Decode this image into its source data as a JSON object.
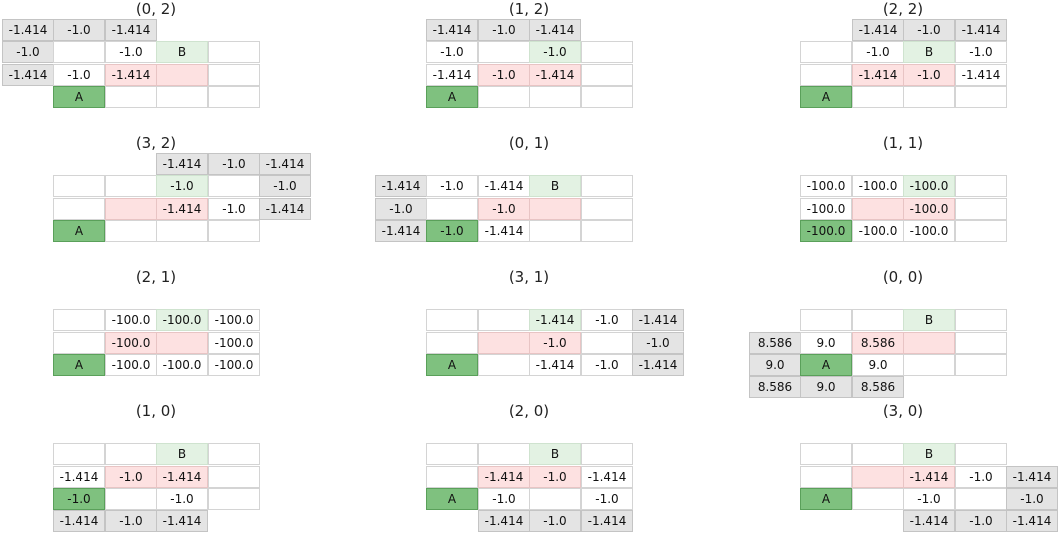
{
  "colors": {
    "empty": "#ffffff",
    "outside": "#e4e4e4",
    "wall": "#fde1e1",
    "goal": "#e3f2e3",
    "agent": "#7fc17f"
  },
  "panels": [
    {
      "title": "(0, 2)",
      "cells": [
        {
          "c": -1,
          "r": 0,
          "t": "out",
          "v": "-1.414"
        },
        {
          "c": 0,
          "r": 0,
          "t": "out",
          "v": "-1.0"
        },
        {
          "c": 1,
          "r": 0,
          "t": "out",
          "v": "-1.414"
        },
        {
          "c": -1,
          "r": 1,
          "t": "out",
          "v": "-1.0"
        },
        {
          "c": 0,
          "r": 1,
          "t": "empty",
          "v": ""
        },
        {
          "c": 1,
          "r": 1,
          "t": "empty",
          "v": "-1.0"
        },
        {
          "c": 2,
          "r": 1,
          "t": "goal",
          "v": "B"
        },
        {
          "c": 3,
          "r": 1,
          "t": "empty",
          "v": ""
        },
        {
          "c": -1,
          "r": 2,
          "t": "out",
          "v": "-1.414"
        },
        {
          "c": 0,
          "r": 2,
          "t": "empty",
          "v": "-1.0"
        },
        {
          "c": 1,
          "r": 2,
          "t": "wall",
          "v": "-1.414"
        },
        {
          "c": 2,
          "r": 2,
          "t": "wall",
          "v": ""
        },
        {
          "c": 3,
          "r": 2,
          "t": "empty",
          "v": ""
        },
        {
          "c": 0,
          "r": 3,
          "t": "agent",
          "v": "A"
        },
        {
          "c": 1,
          "r": 3,
          "t": "empty",
          "v": ""
        },
        {
          "c": 2,
          "r": 3,
          "t": "empty",
          "v": ""
        },
        {
          "c": 3,
          "r": 3,
          "t": "empty",
          "v": ""
        }
      ]
    },
    {
      "title": "(1, 2)",
      "cells": [
        {
          "c": 0,
          "r": 0,
          "t": "out",
          "v": "-1.414"
        },
        {
          "c": 1,
          "r": 0,
          "t": "out",
          "v": "-1.0"
        },
        {
          "c": 2,
          "r": 0,
          "t": "out",
          "v": "-1.414"
        },
        {
          "c": 0,
          "r": 1,
          "t": "empty",
          "v": "-1.0"
        },
        {
          "c": 1,
          "r": 1,
          "t": "empty",
          "v": ""
        },
        {
          "c": 2,
          "r": 1,
          "t": "goal",
          "v": "-1.0"
        },
        {
          "c": 3,
          "r": 1,
          "t": "empty",
          "v": ""
        },
        {
          "c": 0,
          "r": 2,
          "t": "empty",
          "v": "-1.414"
        },
        {
          "c": 1,
          "r": 2,
          "t": "wall",
          "v": "-1.0"
        },
        {
          "c": 2,
          "r": 2,
          "t": "wall",
          "v": "-1.414"
        },
        {
          "c": 3,
          "r": 2,
          "t": "empty",
          "v": ""
        },
        {
          "c": 0,
          "r": 3,
          "t": "agent",
          "v": "A"
        },
        {
          "c": 1,
          "r": 3,
          "t": "empty",
          "v": ""
        },
        {
          "c": 2,
          "r": 3,
          "t": "empty",
          "v": ""
        },
        {
          "c": 3,
          "r": 3,
          "t": "empty",
          "v": ""
        }
      ]
    },
    {
      "title": "(2, 2)",
      "cells": [
        {
          "c": 1,
          "r": 0,
          "t": "out",
          "v": "-1.414"
        },
        {
          "c": 2,
          "r": 0,
          "t": "out",
          "v": "-1.0"
        },
        {
          "c": 3,
          "r": 0,
          "t": "out",
          "v": "-1.414"
        },
        {
          "c": 0,
          "r": 1,
          "t": "empty",
          "v": ""
        },
        {
          "c": 1,
          "r": 1,
          "t": "empty",
          "v": "-1.0"
        },
        {
          "c": 2,
          "r": 1,
          "t": "goal",
          "v": "B"
        },
        {
          "c": 3,
          "r": 1,
          "t": "empty",
          "v": "-1.0"
        },
        {
          "c": 0,
          "r": 2,
          "t": "empty",
          "v": ""
        },
        {
          "c": 1,
          "r": 2,
          "t": "wall",
          "v": "-1.414"
        },
        {
          "c": 2,
          "r": 2,
          "t": "wall",
          "v": "-1.0"
        },
        {
          "c": 3,
          "r": 2,
          "t": "empty",
          "v": "-1.414"
        },
        {
          "c": 0,
          "r": 3,
          "t": "agent",
          "v": "A"
        },
        {
          "c": 1,
          "r": 3,
          "t": "empty",
          "v": ""
        },
        {
          "c": 2,
          "r": 3,
          "t": "empty",
          "v": ""
        },
        {
          "c": 3,
          "r": 3,
          "t": "empty",
          "v": ""
        }
      ]
    },
    {
      "title": "(3, 2)",
      "cells": [
        {
          "c": 2,
          "r": 0,
          "t": "out",
          "v": "-1.414"
        },
        {
          "c": 3,
          "r": 0,
          "t": "out",
          "v": "-1.0"
        },
        {
          "c": 4,
          "r": 0,
          "t": "out",
          "v": "-1.414"
        },
        {
          "c": 0,
          "r": 1,
          "t": "empty",
          "v": ""
        },
        {
          "c": 1,
          "r": 1,
          "t": "empty",
          "v": ""
        },
        {
          "c": 2,
          "r": 1,
          "t": "goal",
          "v": "-1.0"
        },
        {
          "c": 3,
          "r": 1,
          "t": "empty",
          "v": ""
        },
        {
          "c": 4,
          "r": 1,
          "t": "out",
          "v": "-1.0"
        },
        {
          "c": 0,
          "r": 2,
          "t": "empty",
          "v": ""
        },
        {
          "c": 1,
          "r": 2,
          "t": "wall",
          "v": ""
        },
        {
          "c": 2,
          "r": 2,
          "t": "wall",
          "v": "-1.414"
        },
        {
          "c": 3,
          "r": 2,
          "t": "empty",
          "v": "-1.0"
        },
        {
          "c": 4,
          "r": 2,
          "t": "out",
          "v": "-1.414"
        },
        {
          "c": 0,
          "r": 3,
          "t": "agent",
          "v": "A"
        },
        {
          "c": 1,
          "r": 3,
          "t": "empty",
          "v": ""
        },
        {
          "c": 2,
          "r": 3,
          "t": "empty",
          "v": ""
        },
        {
          "c": 3,
          "r": 3,
          "t": "empty",
          "v": ""
        }
      ]
    },
    {
      "title": "(0, 1)",
      "cells": [
        {
          "c": -1,
          "r": 1,
          "t": "out",
          "v": "-1.414"
        },
        {
          "c": 0,
          "r": 1,
          "t": "empty",
          "v": "-1.0"
        },
        {
          "c": 1,
          "r": 1,
          "t": "empty",
          "v": "-1.414"
        },
        {
          "c": 2,
          "r": 1,
          "t": "goal",
          "v": "B"
        },
        {
          "c": 3,
          "r": 1,
          "t": "empty",
          "v": ""
        },
        {
          "c": -1,
          "r": 2,
          "t": "out",
          "v": "-1.0"
        },
        {
          "c": 0,
          "r": 2,
          "t": "empty",
          "v": ""
        },
        {
          "c": 1,
          "r": 2,
          "t": "wall",
          "v": "-1.0"
        },
        {
          "c": 2,
          "r": 2,
          "t": "wall",
          "v": ""
        },
        {
          "c": 3,
          "r": 2,
          "t": "empty",
          "v": ""
        },
        {
          "c": -1,
          "r": 3,
          "t": "out",
          "v": "-1.414"
        },
        {
          "c": 0,
          "r": 3,
          "t": "agent",
          "v": "-1.0"
        },
        {
          "c": 1,
          "r": 3,
          "t": "empty",
          "v": "-1.414"
        },
        {
          "c": 2,
          "r": 3,
          "t": "empty",
          "v": ""
        },
        {
          "c": 3,
          "r": 3,
          "t": "empty",
          "v": ""
        }
      ]
    },
    {
      "title": "(1, 1)",
      "cells": [
        {
          "c": 0,
          "r": 1,
          "t": "empty",
          "v": "-100.0"
        },
        {
          "c": 1,
          "r": 1,
          "t": "empty",
          "v": "-100.0"
        },
        {
          "c": 2,
          "r": 1,
          "t": "goal",
          "v": "-100.0"
        },
        {
          "c": 3,
          "r": 1,
          "t": "empty",
          "v": ""
        },
        {
          "c": 0,
          "r": 2,
          "t": "empty",
          "v": "-100.0"
        },
        {
          "c": 1,
          "r": 2,
          "t": "wall",
          "v": ""
        },
        {
          "c": 2,
          "r": 2,
          "t": "wall",
          "v": "-100.0"
        },
        {
          "c": 3,
          "r": 2,
          "t": "empty",
          "v": ""
        },
        {
          "c": 0,
          "r": 3,
          "t": "agent",
          "v": "-100.0"
        },
        {
          "c": 1,
          "r": 3,
          "t": "empty",
          "v": "-100.0"
        },
        {
          "c": 2,
          "r": 3,
          "t": "empty",
          "v": "-100.0"
        },
        {
          "c": 3,
          "r": 3,
          "t": "empty",
          "v": ""
        }
      ]
    },
    {
      "title": "(2, 1)",
      "cells": [
        {
          "c": 0,
          "r": 1,
          "t": "empty",
          "v": ""
        },
        {
          "c": 1,
          "r": 1,
          "t": "empty",
          "v": "-100.0"
        },
        {
          "c": 2,
          "r": 1,
          "t": "goal",
          "v": "-100.0"
        },
        {
          "c": 3,
          "r": 1,
          "t": "empty",
          "v": "-100.0"
        },
        {
          "c": 0,
          "r": 2,
          "t": "empty",
          "v": ""
        },
        {
          "c": 1,
          "r": 2,
          "t": "wall",
          "v": "-100.0"
        },
        {
          "c": 2,
          "r": 2,
          "t": "wall",
          "v": ""
        },
        {
          "c": 3,
          "r": 2,
          "t": "empty",
          "v": "-100.0"
        },
        {
          "c": 0,
          "r": 3,
          "t": "agent",
          "v": "A"
        },
        {
          "c": 1,
          "r": 3,
          "t": "empty",
          "v": "-100.0"
        },
        {
          "c": 2,
          "r": 3,
          "t": "empty",
          "v": "-100.0"
        },
        {
          "c": 3,
          "r": 3,
          "t": "empty",
          "v": "-100.0"
        }
      ]
    },
    {
      "title": "(3, 1)",
      "cells": [
        {
          "c": 0,
          "r": 1,
          "t": "empty",
          "v": ""
        },
        {
          "c": 1,
          "r": 1,
          "t": "empty",
          "v": ""
        },
        {
          "c": 2,
          "r": 1,
          "t": "goal",
          "v": "-1.414"
        },
        {
          "c": 3,
          "r": 1,
          "t": "empty",
          "v": "-1.0"
        },
        {
          "c": 4,
          "r": 1,
          "t": "out",
          "v": "-1.414"
        },
        {
          "c": 0,
          "r": 2,
          "t": "empty",
          "v": ""
        },
        {
          "c": 1,
          "r": 2,
          "t": "wall",
          "v": ""
        },
        {
          "c": 2,
          "r": 2,
          "t": "wall",
          "v": "-1.0"
        },
        {
          "c": 3,
          "r": 2,
          "t": "empty",
          "v": ""
        },
        {
          "c": 4,
          "r": 2,
          "t": "out",
          "v": "-1.0"
        },
        {
          "c": 0,
          "r": 3,
          "t": "agent",
          "v": "A"
        },
        {
          "c": 1,
          "r": 3,
          "t": "empty",
          "v": ""
        },
        {
          "c": 2,
          "r": 3,
          "t": "empty",
          "v": "-1.414"
        },
        {
          "c": 3,
          "r": 3,
          "t": "empty",
          "v": "-1.0"
        },
        {
          "c": 4,
          "r": 3,
          "t": "out",
          "v": "-1.414"
        }
      ]
    },
    {
      "title": "(0, 0)",
      "cells": [
        {
          "c": 0,
          "r": 1,
          "t": "empty",
          "v": ""
        },
        {
          "c": 1,
          "r": 1,
          "t": "empty",
          "v": ""
        },
        {
          "c": 2,
          "r": 1,
          "t": "goal",
          "v": "B"
        },
        {
          "c": 3,
          "r": 1,
          "t": "empty",
          "v": ""
        },
        {
          "c": -1,
          "r": 2,
          "t": "out",
          "v": "8.586"
        },
        {
          "c": 0,
          "r": 2,
          "t": "empty",
          "v": "9.0"
        },
        {
          "c": 1,
          "r": 2,
          "t": "wall",
          "v": "8.586"
        },
        {
          "c": 2,
          "r": 2,
          "t": "wall",
          "v": ""
        },
        {
          "c": 3,
          "r": 2,
          "t": "empty",
          "v": ""
        },
        {
          "c": -1,
          "r": 3,
          "t": "out",
          "v": "9.0"
        },
        {
          "c": 0,
          "r": 3,
          "t": "agent",
          "v": "A"
        },
        {
          "c": 1,
          "r": 3,
          "t": "empty",
          "v": "9.0"
        },
        {
          "c": 2,
          "r": 3,
          "t": "empty",
          "v": ""
        },
        {
          "c": 3,
          "r": 3,
          "t": "empty",
          "v": ""
        },
        {
          "c": -1,
          "r": 4,
          "t": "out",
          "v": "8.586"
        },
        {
          "c": 0,
          "r": 4,
          "t": "out",
          "v": "9.0"
        },
        {
          "c": 1,
          "r": 4,
          "t": "out",
          "v": "8.586"
        }
      ]
    },
    {
      "title": "(1, 0)",
      "cells": [
        {
          "c": 0,
          "r": 1,
          "t": "empty",
          "v": ""
        },
        {
          "c": 1,
          "r": 1,
          "t": "empty",
          "v": ""
        },
        {
          "c": 2,
          "r": 1,
          "t": "goal",
          "v": "B"
        },
        {
          "c": 3,
          "r": 1,
          "t": "empty",
          "v": ""
        },
        {
          "c": 0,
          "r": 2,
          "t": "empty",
          "v": "-1.414"
        },
        {
          "c": 1,
          "r": 2,
          "t": "wall",
          "v": "-1.0"
        },
        {
          "c": 2,
          "r": 2,
          "t": "wall",
          "v": "-1.414"
        },
        {
          "c": 3,
          "r": 2,
          "t": "empty",
          "v": ""
        },
        {
          "c": 0,
          "r": 3,
          "t": "agent",
          "v": "-1.0"
        },
        {
          "c": 1,
          "r": 3,
          "t": "empty",
          "v": ""
        },
        {
          "c": 2,
          "r": 3,
          "t": "empty",
          "v": "-1.0"
        },
        {
          "c": 3,
          "r": 3,
          "t": "empty",
          "v": ""
        },
        {
          "c": 0,
          "r": 4,
          "t": "out",
          "v": "-1.414"
        },
        {
          "c": 1,
          "r": 4,
          "t": "out",
          "v": "-1.0"
        },
        {
          "c": 2,
          "r": 4,
          "t": "out",
          "v": "-1.414"
        }
      ]
    },
    {
      "title": "(2, 0)",
      "cells": [
        {
          "c": 0,
          "r": 1,
          "t": "empty",
          "v": ""
        },
        {
          "c": 1,
          "r": 1,
          "t": "empty",
          "v": ""
        },
        {
          "c": 2,
          "r": 1,
          "t": "goal",
          "v": "B"
        },
        {
          "c": 3,
          "r": 1,
          "t": "empty",
          "v": ""
        },
        {
          "c": 0,
          "r": 2,
          "t": "empty",
          "v": ""
        },
        {
          "c": 1,
          "r": 2,
          "t": "wall",
          "v": "-1.414"
        },
        {
          "c": 2,
          "r": 2,
          "t": "wall",
          "v": "-1.0"
        },
        {
          "c": 3,
          "r": 2,
          "t": "empty",
          "v": "-1.414"
        },
        {
          "c": 0,
          "r": 3,
          "t": "agent",
          "v": "A"
        },
        {
          "c": 1,
          "r": 3,
          "t": "empty",
          "v": "-1.0"
        },
        {
          "c": 2,
          "r": 3,
          "t": "empty",
          "v": ""
        },
        {
          "c": 3,
          "r": 3,
          "t": "empty",
          "v": "-1.0"
        },
        {
          "c": 1,
          "r": 4,
          "t": "out",
          "v": "-1.414"
        },
        {
          "c": 2,
          "r": 4,
          "t": "out",
          "v": "-1.0"
        },
        {
          "c": 3,
          "r": 4,
          "t": "out",
          "v": "-1.414"
        }
      ]
    },
    {
      "title": "(3, 0)",
      "cells": [
        {
          "c": 0,
          "r": 1,
          "t": "empty",
          "v": ""
        },
        {
          "c": 1,
          "r": 1,
          "t": "empty",
          "v": ""
        },
        {
          "c": 2,
          "r": 1,
          "t": "goal",
          "v": "B"
        },
        {
          "c": 3,
          "r": 1,
          "t": "empty",
          "v": ""
        },
        {
          "c": 0,
          "r": 2,
          "t": "empty",
          "v": ""
        },
        {
          "c": 1,
          "r": 2,
          "t": "wall",
          "v": ""
        },
        {
          "c": 2,
          "r": 2,
          "t": "wall",
          "v": "-1.414"
        },
        {
          "c": 3,
          "r": 2,
          "t": "empty",
          "v": "-1.0"
        },
        {
          "c": 4,
          "r": 2,
          "t": "out",
          "v": "-1.414"
        },
        {
          "c": 0,
          "r": 3,
          "t": "agent",
          "v": "A"
        },
        {
          "c": 1,
          "r": 3,
          "t": "empty",
          "v": ""
        },
        {
          "c": 2,
          "r": 3,
          "t": "empty",
          "v": "-1.0"
        },
        {
          "c": 3,
          "r": 3,
          "t": "empty",
          "v": ""
        },
        {
          "c": 4,
          "r": 3,
          "t": "out",
          "v": "-1.0"
        },
        {
          "c": 2,
          "r": 4,
          "t": "out",
          "v": "-1.414"
        },
        {
          "c": 3,
          "r": 4,
          "t": "out",
          "v": "-1.0"
        },
        {
          "c": 4,
          "r": 4,
          "t": "out",
          "v": "-1.414"
        }
      ]
    }
  ]
}
